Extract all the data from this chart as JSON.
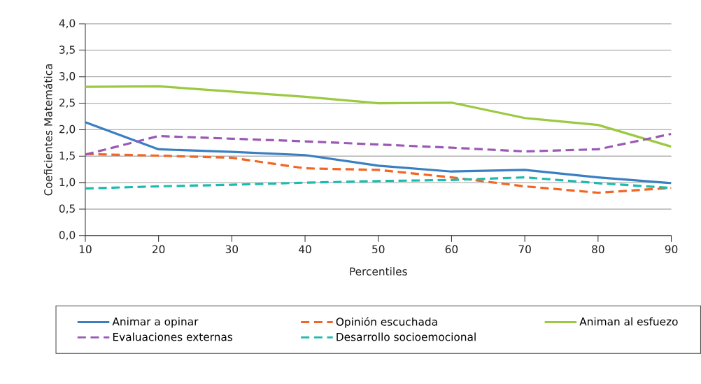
{
  "chart_data": {
    "type": "line",
    "xlabel": "Percentiles",
    "ylabel": "Coeficientes Matemática",
    "x": [
      10,
      20,
      30,
      40,
      50,
      60,
      70,
      80,
      90
    ],
    "xlim": [
      10,
      90
    ],
    "xticks": [
      10,
      20,
      30,
      40,
      50,
      60,
      70,
      80,
      90
    ],
    "ylim": [
      0,
      4
    ],
    "yticks": [
      {
        "value": 0,
        "label": "0,0"
      },
      {
        "value": 0.5,
        "label": "0,5"
      },
      {
        "value": 1,
        "label": "1,0"
      },
      {
        "value": 1.5,
        "label": "1,5"
      },
      {
        "value": 2,
        "label": "2,0"
      },
      {
        "value": 2.5,
        "label": "2,5"
      },
      {
        "value": 3,
        "label": "3,0"
      },
      {
        "value": 3.5,
        "label": "3,5"
      },
      {
        "value": 4,
        "label": "4,0"
      }
    ],
    "grid": "y",
    "legend": "bottom",
    "series": [
      {
        "name": "Animar a opinar",
        "color": "#3a7fc1",
        "line_style": "solid",
        "values": [
          2.14,
          1.63,
          1.58,
          1.52,
          1.32,
          1.21,
          1.24,
          1.1,
          0.99
        ]
      },
      {
        "name": "Opinión escuchada",
        "color": "#f26522",
        "line_style": "dashed",
        "values": [
          1.54,
          1.51,
          1.47,
          1.27,
          1.24,
          1.1,
          0.93,
          0.81,
          0.9
        ]
      },
      {
        "name": "Animan al esfuezo",
        "color": "#9bc940",
        "line_style": "solid",
        "values": [
          2.81,
          2.82,
          2.72,
          2.62,
          2.5,
          2.51,
          2.22,
          2.09,
          1.68
        ]
      },
      {
        "name": "Evaluaciones externas",
        "color": "#9b59b6",
        "line_style": "dashed",
        "values": [
          1.53,
          1.88,
          1.83,
          1.78,
          1.72,
          1.66,
          1.59,
          1.63,
          1.92
        ]
      },
      {
        "name": "Desarrollo socioemocional",
        "color": "#1bbcb0",
        "line_style": "dashed",
        "values": [
          0.89,
          0.93,
          0.96,
          1.0,
          1.03,
          1.05,
          1.1,
          0.99,
          0.9
        ]
      }
    ]
  }
}
